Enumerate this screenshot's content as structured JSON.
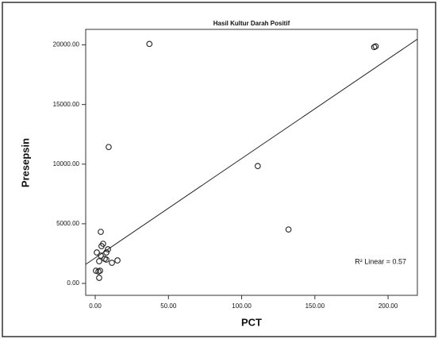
{
  "chart_data": {
    "type": "scatter",
    "title": "Hasil Kultur Darah Positif",
    "x_label": "PCT",
    "y_label": "Presepsin",
    "annotation": "R² Linear = 0.57",
    "xlim": [
      -6.5,
      220
    ],
    "ylim": [
      -1000,
      21300
    ],
    "xticks": [
      {
        "value": 0,
        "label": "0.00"
      },
      {
        "value": 50,
        "label": "50.00"
      },
      {
        "value": 100,
        "label": "100.00"
      },
      {
        "value": 150,
        "label": "150.00"
      },
      {
        "value": 200,
        "label": "200.00"
      }
    ],
    "yticks": [
      {
        "value": 0,
        "label": "0.00"
      },
      {
        "value": 5000,
        "label": "5000.00"
      },
      {
        "value": 10000,
        "label": "10000.00"
      },
      {
        "value": 15000,
        "label": "15000.00"
      },
      {
        "value": 20000,
        "label": "20000.00"
      }
    ],
    "color": "#222222",
    "series": [
      {
        "name": "Presepsin",
        "color": "#222222",
        "x": [
          37,
          190.5,
          191.5,
          9.2,
          111,
          132,
          3.8,
          5.4,
          4.3,
          1.1,
          7.6,
          8.7,
          3.8,
          6.5,
          15.2,
          11.4,
          2.7,
          7.6,
          0.5,
          3.3,
          2.2,
          2.7
        ],
        "values": [
          20080,
          19814,
          19880,
          11436,
          9840,
          4521,
          4322,
          3324,
          3125,
          2593,
          2593,
          2859,
          2327,
          2061,
          1928,
          1729,
          1862,
          1995,
          1064,
          1064,
          997,
          465
        ]
      }
    ],
    "fit": {
      "x": [
        -6.5,
        220
      ],
      "y": [
        1596,
        20479
      ]
    }
  }
}
